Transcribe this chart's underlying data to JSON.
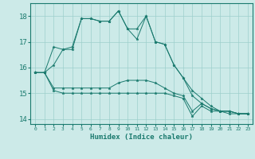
{
  "xlabel": "Humidex (Indice chaleur)",
  "ylabel": "",
  "bg_color": "#cceae8",
  "grid_color": "#9ecfcc",
  "line_color": "#1a7a6e",
  "xlim": [
    -0.5,
    23.5
  ],
  "ylim": [
    13.8,
    18.5
  ],
  "yticks": [
    14,
    15,
    16,
    17,
    18
  ],
  "xticks": [
    0,
    1,
    2,
    3,
    4,
    5,
    6,
    7,
    8,
    9,
    10,
    11,
    12,
    13,
    14,
    15,
    16,
    17,
    18,
    19,
    20,
    21,
    22,
    23
  ],
  "series": [
    {
      "x": [
        0,
        1,
        2,
        3,
        4,
        5,
        6,
        7,
        8,
        9,
        10,
        11,
        12,
        13,
        14,
        15,
        16,
        17,
        18,
        19,
        20,
        21,
        22,
        23
      ],
      "y": [
        15.8,
        15.8,
        15.1,
        15.0,
        15.0,
        15.0,
        15.0,
        15.0,
        15.0,
        15.0,
        15.0,
        15.0,
        15.0,
        15.0,
        15.0,
        14.9,
        14.8,
        14.1,
        14.5,
        14.3,
        14.3,
        14.3,
        14.2,
        14.2
      ]
    },
    {
      "x": [
        0,
        1,
        2,
        3,
        4,
        5,
        6,
        7,
        8,
        9,
        10,
        11,
        12,
        13,
        14,
        15,
        16,
        17,
        18,
        19,
        20,
        21,
        22,
        23
      ],
      "y": [
        15.8,
        15.8,
        15.2,
        15.2,
        15.2,
        15.2,
        15.2,
        15.2,
        15.2,
        15.4,
        15.5,
        15.5,
        15.5,
        15.4,
        15.2,
        15.0,
        14.9,
        14.3,
        14.6,
        14.4,
        14.3,
        14.3,
        14.2,
        14.2
      ]
    },
    {
      "x": [
        0,
        1,
        2,
        3,
        4,
        5,
        6,
        7,
        8,
        9,
        10,
        11,
        12,
        13,
        14,
        15,
        16,
        17,
        18,
        19,
        20,
        21,
        22,
        23
      ],
      "y": [
        15.8,
        15.8,
        16.8,
        16.7,
        16.7,
        17.9,
        17.9,
        17.8,
        17.8,
        18.2,
        17.5,
        17.1,
        18.0,
        17.0,
        16.9,
        16.1,
        15.6,
        14.9,
        14.6,
        14.4,
        14.3,
        14.2,
        14.2,
        14.2
      ]
    },
    {
      "x": [
        0,
        1,
        2,
        3,
        4,
        5,
        6,
        7,
        8,
        9,
        10,
        11,
        12,
        13,
        14,
        15,
        16,
        17,
        18,
        19,
        20,
        21,
        22,
        23
      ],
      "y": [
        15.8,
        15.8,
        16.1,
        16.7,
        16.8,
        17.9,
        17.9,
        17.8,
        17.8,
        18.2,
        17.5,
        17.5,
        18.0,
        17.0,
        16.9,
        16.1,
        15.6,
        15.1,
        14.8,
        14.5,
        14.3,
        14.3,
        14.2,
        14.2
      ]
    }
  ]
}
